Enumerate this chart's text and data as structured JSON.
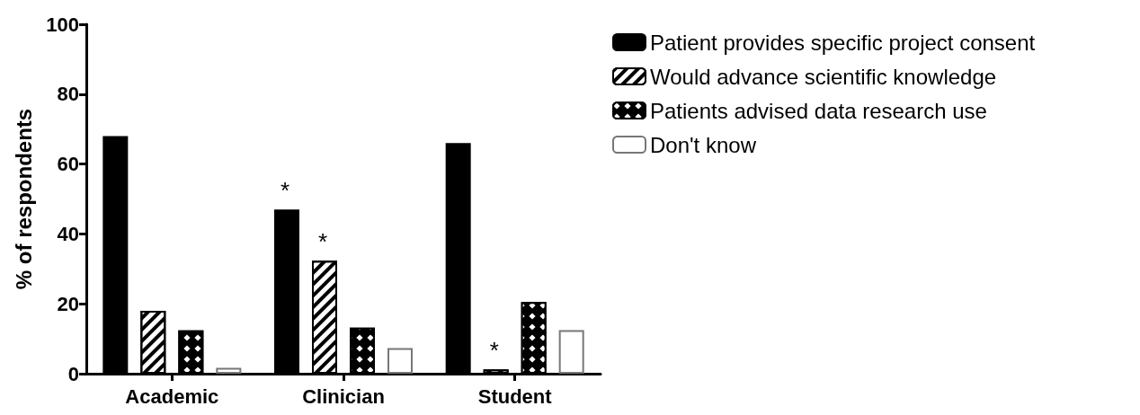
{
  "chart_data": {
    "type": "bar",
    "ylabel": "% of respondents",
    "categories": [
      "Academic",
      "Clinician",
      "Student"
    ],
    "series": [
      {
        "name": "Patient provides specific project consent",
        "color": "#000000",
        "values": [
          68,
          47,
          66
        ]
      },
      {
        "name": "Would advance scientific knowledge",
        "color": "#ffffff",
        "values": [
          18,
          32.3,
          1.2
        ]
      },
      {
        "name": "Patients advised data research use",
        "color": "#000000",
        "values": [
          12.4,
          13.2,
          20.5
        ]
      },
      {
        "name": "Don't know",
        "color": "#ffffff",
        "values": [
          1.7,
          7.3,
          12.5
        ]
      }
    ],
    "annotations": [
      "*",
      "*",
      "*"
    ],
    "ylim": [
      0,
      100
    ],
    "yticks": [
      0,
      20,
      40,
      60,
      80,
      100
    ],
    "grid": false,
    "legend": "top right"
  }
}
